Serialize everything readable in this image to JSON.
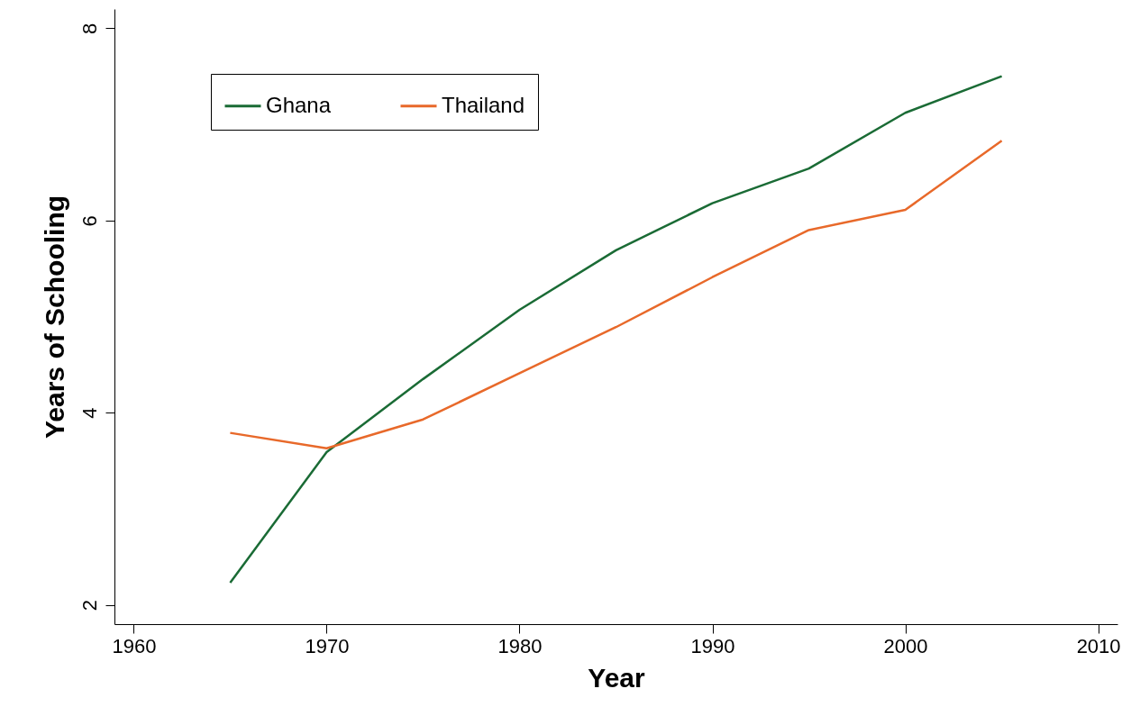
{
  "chart_data": {
    "type": "line",
    "xlabel": "Year",
    "ylabel": "Years of Schooling",
    "x": [
      1965,
      1970,
      1975,
      1980,
      1985,
      1990,
      1995,
      2000,
      2005
    ],
    "series": [
      {
        "name": "Ghana",
        "color": "#1a6b35",
        "values": [
          2.23,
          3.59,
          4.35,
          5.07,
          5.69,
          6.18,
          6.54,
          7.12,
          7.5
        ]
      },
      {
        "name": "Thailand",
        "color": "#e8692a",
        "values": [
          3.79,
          3.63,
          3.93,
          4.41,
          4.89,
          5.41,
          5.9,
          6.11,
          6.83
        ]
      }
    ],
    "xlim": [
      1959,
      2011
    ],
    "xticks": [
      1960,
      1970,
      1980,
      1990,
      2000,
      2010
    ],
    "ylim": [
      1.8,
      8.2
    ],
    "yticks": [
      2,
      4,
      6,
      8
    ],
    "grid": false,
    "legend": "top left",
    "marker": "none",
    "line_style": "solid"
  }
}
